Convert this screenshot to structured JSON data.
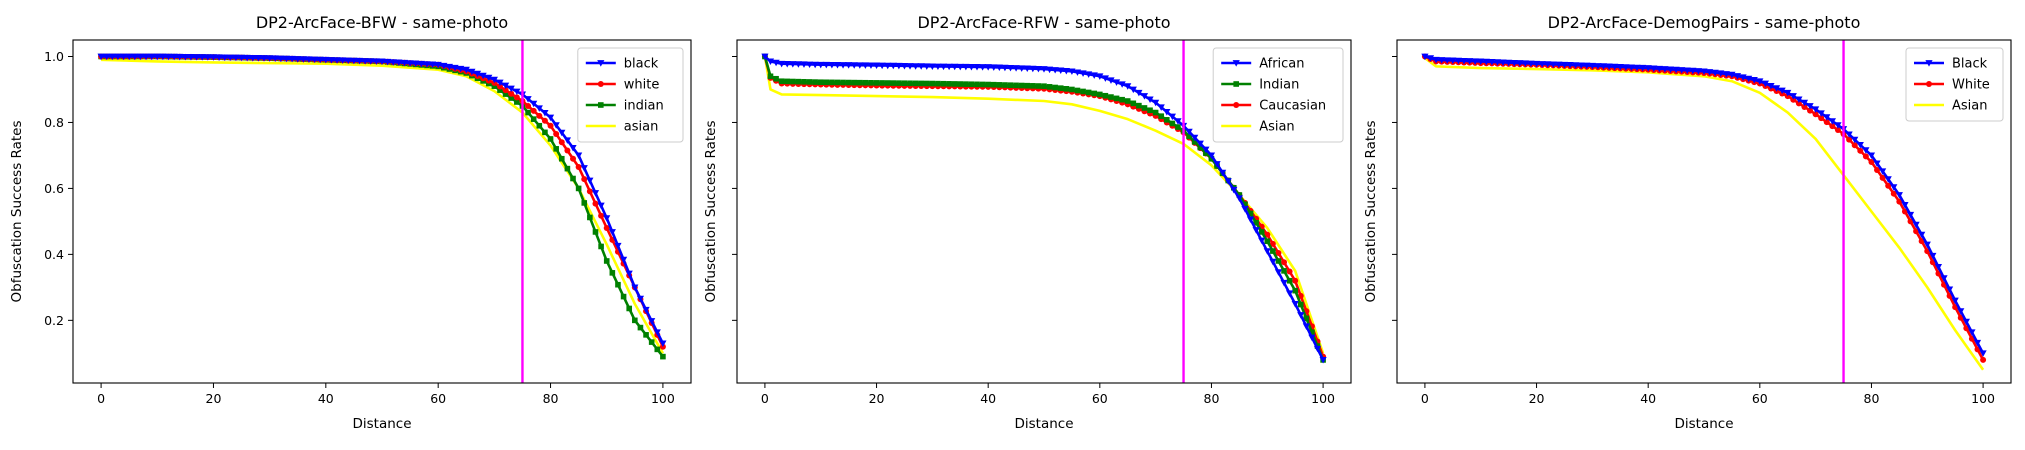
{
  "chart_data": [
    {
      "type": "line",
      "title": "DP2-ArcFace-BFW - same-photo",
      "xlabel": "Distance",
      "ylabel": "Obfuscation Success Rates",
      "xlim": [
        -5,
        105
      ],
      "ylim": [
        0.01,
        1.05
      ],
      "xticks": [
        0,
        20,
        40,
        60,
        80,
        100
      ],
      "yticks": [
        0.2,
        0.4,
        0.6,
        0.8,
        1.0
      ],
      "ytick_labels_visible": true,
      "legend": "top-right",
      "vline": {
        "x": 75,
        "color": "#ff00ff"
      },
      "series": [
        {
          "name": "black",
          "color": "#0000ff",
          "marker": "triangle-down",
          "points": [
            [
              0,
              1.0
            ],
            [
              10,
              1.0
            ],
            [
              20,
              0.998
            ],
            [
              30,
              0.995
            ],
            [
              40,
              0.99
            ],
            [
              50,
              0.985
            ],
            [
              60,
              0.975
            ],
            [
              65,
              0.96
            ],
            [
              70,
              0.93
            ],
            [
              75,
              0.885
            ],
            [
              80,
              0.815
            ],
            [
              85,
              0.7
            ],
            [
              90,
              0.51
            ],
            [
              95,
              0.3
            ],
            [
              100,
              0.13
            ]
          ]
        },
        {
          "name": "white",
          "color": "#ff0000",
          "marker": "circle",
          "points": [
            [
              0,
              1.0
            ],
            [
              10,
              1.0
            ],
            [
              20,
              0.998
            ],
            [
              30,
              0.995
            ],
            [
              40,
              0.99
            ],
            [
              50,
              0.985
            ],
            [
              60,
              0.975
            ],
            [
              65,
              0.955
            ],
            [
              70,
              0.92
            ],
            [
              75,
              0.865
            ],
            [
              80,
              0.79
            ],
            [
              85,
              0.665
            ],
            [
              90,
              0.48
            ],
            [
              95,
              0.3
            ],
            [
              100,
              0.12
            ]
          ]
        },
        {
          "name": "indian",
          "color": "#008000",
          "marker": "square",
          "points": [
            [
              0,
              1.0
            ],
            [
              10,
              1.0
            ],
            [
              20,
              0.998
            ],
            [
              30,
              0.995
            ],
            [
              40,
              0.99
            ],
            [
              50,
              0.985
            ],
            [
              60,
              0.97
            ],
            [
              65,
              0.95
            ],
            [
              70,
              0.91
            ],
            [
              75,
              0.85
            ],
            [
              80,
              0.75
            ],
            [
              85,
              0.6
            ],
            [
              90,
              0.38
            ],
            [
              95,
              0.2
            ],
            [
              100,
              0.09
            ]
          ]
        },
        {
          "name": "asian",
          "color": "#ffff00",
          "marker": "none",
          "points": [
            [
              0,
              0.99
            ],
            [
              10,
              0.985
            ],
            [
              20,
              0.982
            ],
            [
              30,
              0.98
            ],
            [
              40,
              0.978
            ],
            [
              50,
              0.972
            ],
            [
              60,
              0.96
            ],
            [
              65,
              0.94
            ],
            [
              70,
              0.895
            ],
            [
              75,
              0.83
            ],
            [
              80,
              0.73
            ],
            [
              85,
              0.6
            ],
            [
              90,
              0.43
            ],
            [
              95,
              0.25
            ],
            [
              100,
              0.1
            ]
          ]
        }
      ]
    },
    {
      "type": "line",
      "title": "DP2-ArcFace-RFW - same-photo",
      "xlabel": "Distance",
      "ylabel": "Obfuscation Success Rates",
      "xlim": [
        -5,
        105
      ],
      "ylim": [
        0.01,
        1.05
      ],
      "xticks": [
        0,
        20,
        40,
        60,
        80,
        100
      ],
      "yticks": [
        0.2,
        0.4,
        0.6,
        0.8,
        1.0
      ],
      "ytick_labels_visible": false,
      "legend": "top-right",
      "vline": {
        "x": 75,
        "color": "#ff00ff"
      },
      "series": [
        {
          "name": "African",
          "color": "#0000ff",
          "marker": "triangle-down",
          "points": [
            [
              0,
              1.0
            ],
            [
              1,
              0.985
            ],
            [
              3,
              0.978
            ],
            [
              10,
              0.975
            ],
            [
              20,
              0.973
            ],
            [
              30,
              0.97
            ],
            [
              40,
              0.968
            ],
            [
              50,
              0.962
            ],
            [
              55,
              0.955
            ],
            [
              60,
              0.94
            ],
            [
              65,
              0.91
            ],
            [
              70,
              0.86
            ],
            [
              75,
              0.79
            ],
            [
              80,
              0.7
            ],
            [
              85,
              0.57
            ],
            [
              90,
              0.41
            ],
            [
              95,
              0.25
            ],
            [
              100,
              0.08
            ]
          ]
        },
        {
          "name": "Indian",
          "color": "#008000",
          "marker": "square",
          "points": [
            [
              0,
              1.0
            ],
            [
              1,
              0.94
            ],
            [
              3,
              0.925
            ],
            [
              10,
              0.922
            ],
            [
              20,
              0.92
            ],
            [
              30,
              0.918
            ],
            [
              40,
              0.915
            ],
            [
              50,
              0.91
            ],
            [
              55,
              0.9
            ],
            [
              60,
              0.885
            ],
            [
              65,
              0.865
            ],
            [
              70,
              0.83
            ],
            [
              75,
              0.775
            ],
            [
              80,
              0.69
            ],
            [
              85,
              0.58
            ],
            [
              90,
              0.44
            ],
            [
              95,
              0.29
            ],
            [
              100,
              0.08
            ]
          ]
        },
        {
          "name": "Caucasian",
          "color": "#ff0000",
          "marker": "circle",
          "points": [
            [
              0,
              1.0
            ],
            [
              1,
              0.935
            ],
            [
              3,
              0.918
            ],
            [
              10,
              0.915
            ],
            [
              20,
              0.912
            ],
            [
              30,
              0.91
            ],
            [
              40,
              0.908
            ],
            [
              50,
              0.902
            ],
            [
              55,
              0.893
            ],
            [
              60,
              0.88
            ],
            [
              65,
              0.855
            ],
            [
              70,
              0.82
            ],
            [
              75,
              0.77
            ],
            [
              80,
              0.69
            ],
            [
              85,
              0.58
            ],
            [
              90,
              0.46
            ],
            [
              95,
              0.32
            ],
            [
              100,
              0.09
            ]
          ]
        },
        {
          "name": "Asian",
          "color": "#ffff00",
          "marker": "none",
          "points": [
            [
              0,
              1.0
            ],
            [
              1,
              0.9
            ],
            [
              3,
              0.885
            ],
            [
              10,
              0.883
            ],
            [
              20,
              0.88
            ],
            [
              30,
              0.877
            ],
            [
              40,
              0.872
            ],
            [
              50,
              0.865
            ],
            [
              55,
              0.855
            ],
            [
              60,
              0.835
            ],
            [
              65,
              0.81
            ],
            [
              70,
              0.775
            ],
            [
              75,
              0.735
            ],
            [
              80,
              0.67
            ],
            [
              85,
              0.58
            ],
            [
              90,
              0.48
            ],
            [
              95,
              0.35
            ],
            [
              100,
              0.1
            ]
          ]
        }
      ]
    },
    {
      "type": "line",
      "title": "DP2-ArcFace-DemogPairs - same-photo",
      "xlabel": "Distance",
      "ylabel": "Obfuscation Success Rates",
      "xlim": [
        -5,
        105
      ],
      "ylim": [
        0.01,
        1.05
      ],
      "xticks": [
        0,
        20,
        40,
        60,
        80,
        100
      ],
      "yticks": [
        0.2,
        0.4,
        0.6,
        0.8,
        1.0
      ],
      "ytick_labels_visible": false,
      "legend": "top-right",
      "vline": {
        "x": 75,
        "color": "#ff00ff"
      },
      "series": [
        {
          "name": "Black",
          "color": "#0000ff",
          "marker": "triangle-down",
          "points": [
            [
              0,
              1.0
            ],
            [
              2,
              0.99
            ],
            [
              10,
              0.985
            ],
            [
              20,
              0.978
            ],
            [
              30,
              0.972
            ],
            [
              40,
              0.965
            ],
            [
              50,
              0.955
            ],
            [
              55,
              0.945
            ],
            [
              60,
              0.925
            ],
            [
              65,
              0.89
            ],
            [
              70,
              0.84
            ],
            [
              75,
              0.78
            ],
            [
              80,
              0.7
            ],
            [
              85,
              0.58
            ],
            [
              90,
              0.43
            ],
            [
              95,
              0.26
            ],
            [
              100,
              0.1
            ]
          ]
        },
        {
          "name": "White",
          "color": "#ff0000",
          "marker": "circle",
          "points": [
            [
              0,
              1.0
            ],
            [
              2,
              0.985
            ],
            [
              10,
              0.98
            ],
            [
              20,
              0.975
            ],
            [
              30,
              0.968
            ],
            [
              40,
              0.96
            ],
            [
              50,
              0.95
            ],
            [
              55,
              0.94
            ],
            [
              60,
              0.918
            ],
            [
              65,
              0.88
            ],
            [
              70,
              0.825
            ],
            [
              75,
              0.765
            ],
            [
              80,
              0.68
            ],
            [
              85,
              0.56
            ],
            [
              90,
              0.41
            ],
            [
              95,
              0.24
            ],
            [
              100,
              0.08
            ]
          ]
        },
        {
          "name": "Asian",
          "color": "#ffff00",
          "marker": "none",
          "points": [
            [
              0,
              0.995
            ],
            [
              2,
              0.97
            ],
            [
              10,
              0.965
            ],
            [
              20,
              0.962
            ],
            [
              30,
              0.958
            ],
            [
              40,
              0.952
            ],
            [
              50,
              0.94
            ],
            [
              55,
              0.925
            ],
            [
              60,
              0.89
            ],
            [
              65,
              0.83
            ],
            [
              70,
              0.75
            ],
            [
              75,
              0.64
            ],
            [
              80,
              0.53
            ],
            [
              85,
              0.42
            ],
            [
              90,
              0.3
            ],
            [
              95,
              0.17
            ],
            [
              100,
              0.05
            ]
          ]
        }
      ]
    }
  ]
}
